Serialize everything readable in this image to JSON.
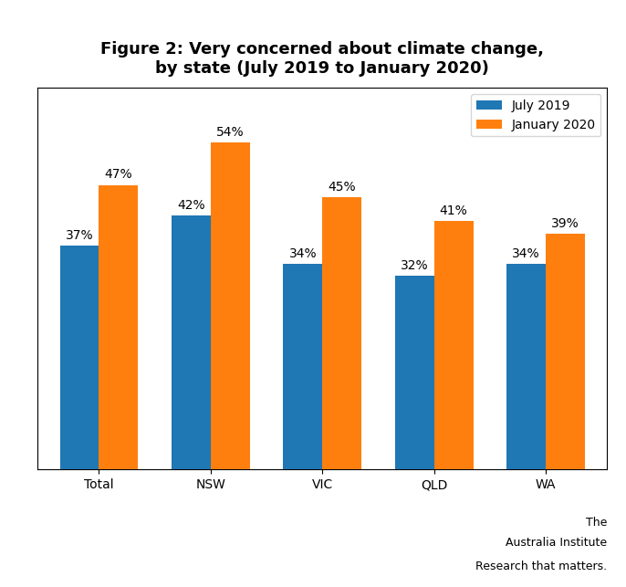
{
  "chart_data": {
    "type": "bar",
    "title": "Figure 2: Very concerned about climate change,\nby state (July 2019 to January 2020)",
    "categories": [
      "Total",
      "NSW",
      "VIC",
      "QLD",
      "WA"
    ],
    "series": [
      {
        "name": "July 2019",
        "values": [
          37,
          42,
          34,
          32,
          34
        ],
        "value_labels": [
          "37%",
          "42%",
          "34%",
          "32%",
          "34%"
        ]
      },
      {
        "name": "January 2020",
        "values": [
          47,
          54,
          45,
          41,
          39
        ],
        "value_labels": [
          "47%",
          "54%",
          "45%",
          "41%",
          "39%"
        ]
      }
    ],
    "ylim": [
      0,
      63
    ],
    "data_labels": true,
    "tick_labels": "x",
    "legend": "upper right",
    "grid": false,
    "annotations": [
      "The",
      "Australia Institute",
      "Research that matters."
    ]
  }
}
